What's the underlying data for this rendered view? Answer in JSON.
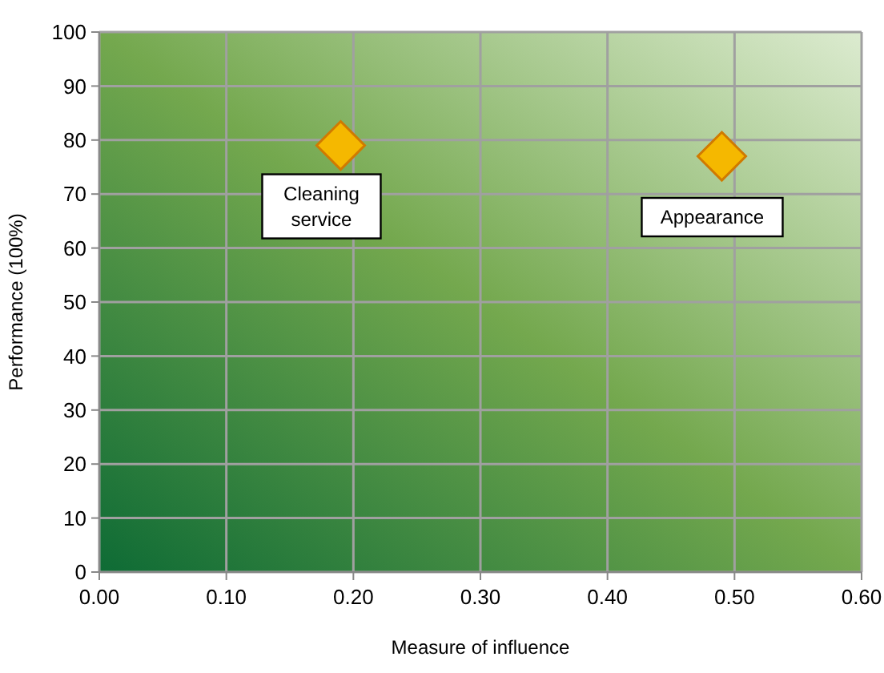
{
  "chart_data": {
    "type": "scatter",
    "xlabel": "Measure of influence",
    "ylabel": "Performance (100%)",
    "x": [
      0.19,
      0.49
    ],
    "values": [
      79,
      77
    ],
    "color": "#f5b800",
    "marker": "diamond",
    "xlim": [
      0,
      0.6
    ],
    "xticks": [
      {
        "value": 0,
        "label": "0.00"
      },
      {
        "value": 0.1,
        "label": "0.10"
      },
      {
        "value": 0.2,
        "label": "0.20"
      },
      {
        "value": 0.3,
        "label": "0.30"
      },
      {
        "value": 0.4,
        "label": "0.40"
      },
      {
        "value": 0.5,
        "label": "0.50"
      },
      {
        "value": 0.6,
        "label": "0.60"
      }
    ],
    "ylim": [
      0,
      100
    ],
    "yticks": [
      0,
      10,
      20,
      30,
      40,
      50,
      60,
      70,
      80,
      90,
      100
    ],
    "grid": true,
    "annotations": [
      {
        "text": "Cleaning service",
        "x": 0.19,
        "y": 79
      },
      {
        "text": "Appearance",
        "x": 0.49,
        "y": 77
      }
    ]
  }
}
